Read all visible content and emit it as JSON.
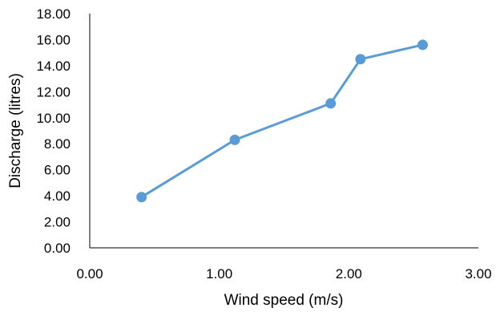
{
  "chart_data": {
    "type": "scatter",
    "title": "",
    "xlabel": "Wind speed (m/s)",
    "ylabel": "Discharge (litres)",
    "xlim": [
      0,
      3
    ],
    "ylim": [
      0,
      18
    ],
    "x_ticks": [
      "0.00",
      "1.00",
      "2.00",
      "3.00"
    ],
    "y_ticks": [
      "0.00",
      "2.00",
      "4.00",
      "6.00",
      "8.00",
      "10.00",
      "12.00",
      "14.00",
      "16.00",
      "18.00"
    ],
    "grid": false,
    "legend": "none",
    "series": [
      {
        "style": "line-with-markers",
        "color": "#5B9BD5",
        "x": [
          0.4,
          1.12,
          1.86,
          2.09,
          2.57
        ],
        "y": [
          3.9,
          8.3,
          11.1,
          14.5,
          15.6
        ]
      }
    ]
  }
}
